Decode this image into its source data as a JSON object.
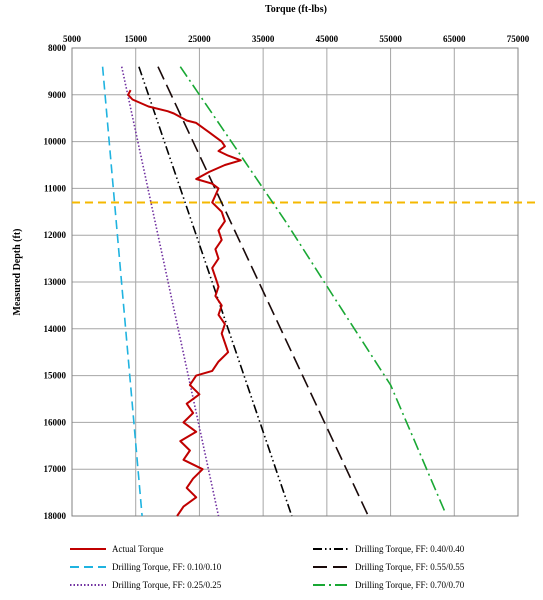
{
  "chart_data": {
    "type": "line",
    "xlabel": "Torque (ft-lbs)",
    "ylabel": "Measured Depth (ft)",
    "xlim": [
      5000,
      75000
    ],
    "ylim": [
      8000,
      18000
    ],
    "x_ticks": [
      "5000",
      "15000",
      "25000",
      "35000",
      "45000",
      "55000",
      "65000",
      "75000"
    ],
    "y_ticks": [
      "8000",
      "9000",
      "10000",
      "11000",
      "12000",
      "13000",
      "14000",
      "15000",
      "16000",
      "17000",
      "18000"
    ],
    "x_axis_position": "top",
    "y_axis_inverted": true,
    "grid": true,
    "legend_position": "bottom",
    "reference_line": {
      "depth": 11300,
      "color": "#f5b800",
      "style": "dashed"
    },
    "series": [
      {
        "name": "Actual Torque",
        "color": "#c00000",
        "style": "solid",
        "points": [
          [
            14200,
            8900
          ],
          [
            13800,
            9000
          ],
          [
            14500,
            9100
          ],
          [
            17000,
            9250
          ],
          [
            20000,
            9350
          ],
          [
            21000,
            9400
          ],
          [
            23000,
            9550
          ],
          [
            24500,
            9600
          ],
          [
            25500,
            9700
          ],
          [
            26500,
            9800
          ],
          [
            27500,
            9900
          ],
          [
            28500,
            10000
          ],
          [
            29000,
            10100
          ],
          [
            28000,
            10200
          ],
          [
            29500,
            10300
          ],
          [
            31500,
            10400
          ],
          [
            29000,
            10500
          ],
          [
            26500,
            10650
          ],
          [
            24500,
            10800
          ],
          [
            27000,
            10900
          ],
          [
            28000,
            11000
          ],
          [
            27500,
            11150
          ],
          [
            27000,
            11300
          ],
          [
            28500,
            11500
          ],
          [
            29000,
            11700
          ],
          [
            28000,
            11900
          ],
          [
            28500,
            12100
          ],
          [
            27500,
            12300
          ],
          [
            28000,
            12500
          ],
          [
            27000,
            12700
          ],
          [
            27500,
            12900
          ],
          [
            28000,
            13100
          ],
          [
            27500,
            13300
          ],
          [
            28500,
            13500
          ],
          [
            28000,
            13700
          ],
          [
            29000,
            13900
          ],
          [
            28500,
            14100
          ],
          [
            29000,
            14300
          ],
          [
            29500,
            14500
          ],
          [
            28000,
            14700
          ],
          [
            27000,
            14900
          ],
          [
            24500,
            15000
          ],
          [
            23500,
            15200
          ],
          [
            25000,
            15400
          ],
          [
            23000,
            15600
          ],
          [
            24000,
            15800
          ],
          [
            22500,
            16000
          ],
          [
            24500,
            16200
          ],
          [
            22000,
            16400
          ],
          [
            23500,
            16600
          ],
          [
            22500,
            16800
          ],
          [
            25500,
            17000
          ],
          [
            24000,
            17200
          ],
          [
            23000,
            17400
          ],
          [
            24500,
            17600
          ],
          [
            22500,
            17800
          ],
          [
            21500,
            18000
          ]
        ]
      },
      {
        "name": "Drilling Torque, FF: 0.10/0.10",
        "color": "#1fb3e0",
        "style": "dashed",
        "points": [
          [
            9800,
            8400
          ],
          [
            16000,
            18000
          ]
        ]
      },
      {
        "name": "Drilling Torque, FF: 0.25/0.25",
        "color": "#7030a0",
        "style": "dotted",
        "points": [
          [
            12800,
            8400
          ],
          [
            28000,
            18000
          ]
        ]
      },
      {
        "name": "Drilling Torque, FF: 0.40/0.40",
        "color": "#000000",
        "style": "dash-dot-dot",
        "points": [
          [
            15500,
            8400
          ],
          [
            39500,
            18000
          ]
        ]
      },
      {
        "name": "Drilling Torque, FF: 0.55/0.55",
        "color": "#1a0a0a",
        "style": "long-dash",
        "points": [
          [
            18500,
            8400
          ],
          [
            51500,
            18000
          ]
        ]
      },
      {
        "name": "Drilling Torque, FF: 0.70/0.70",
        "color": "#19a834",
        "style": "dash-dot",
        "points": [
          [
            22000,
            8400
          ],
          [
            27500,
            9500
          ],
          [
            33500,
            10700
          ],
          [
            38500,
            11700
          ],
          [
            46000,
            13300
          ],
          [
            55000,
            15200
          ],
          [
            63500,
            17900
          ]
        ]
      }
    ]
  }
}
